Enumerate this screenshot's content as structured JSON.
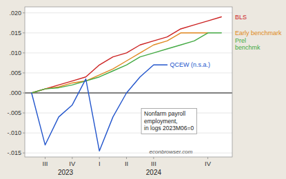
{
  "chart_data": {
    "type": "line",
    "x": [
      0,
      1,
      2,
      3,
      4,
      5,
      6,
      7,
      8,
      9,
      10,
      11,
      12,
      13,
      14
    ],
    "xlim": [
      -0.5,
      14.8
    ],
    "xticks": [
      {
        "value": 1,
        "label": "III"
      },
      {
        "value": 3,
        "label": "IV"
      },
      {
        "value": 5,
        "label": "I"
      },
      {
        "value": 7,
        "label": "II"
      },
      {
        "value": 9,
        "label": "III"
      },
      {
        "value": 13,
        "label": "IV"
      }
    ],
    "ylim": [
      -0.016,
      0.0215
    ],
    "yticks": [
      {
        "value": -0.015,
        "label": "-.015"
      },
      {
        "value": -0.01,
        "label": "-.010"
      },
      {
        "value": -0.005,
        "label": "-.005"
      },
      {
        "value": 0.0,
        "label": ".000"
      },
      {
        "value": 0.005,
        "label": ".005"
      },
      {
        "value": 0.01,
        "label": ".010"
      },
      {
        "value": 0.015,
        "label": ".015"
      },
      {
        "value": 0.02,
        "label": ".020"
      }
    ],
    "grid": true,
    "series": [
      {
        "name": "BLS",
        "color": "#cc2222",
        "values": [
          0.0,
          0.001,
          0.002,
          0.003,
          0.004,
          0.007,
          0.009,
          0.01,
          0.012,
          0.013,
          0.014,
          0.016,
          0.017,
          0.018,
          0.019
        ]
      },
      {
        "name": "Early benchmark",
        "color": "#e08820",
        "values": [
          0.0,
          0.001,
          0.0015,
          0.0025,
          0.003,
          0.0045,
          0.006,
          0.008,
          0.01,
          0.012,
          0.013,
          0.015,
          0.015,
          0.015,
          null
        ]
      },
      {
        "name": "Prel\nbenchmk",
        "color": "#44aa44",
        "values": [
          0.0,
          0.001,
          0.0013,
          0.002,
          0.003,
          0.004,
          0.0055,
          0.007,
          0.009,
          0.01,
          0.011,
          0.012,
          0.013,
          0.015,
          0.015
        ]
      },
      {
        "name": "QCEW (n.s.a.)",
        "color": "#2255cc",
        "values": [
          0.0,
          -0.013,
          -0.006,
          -0.003,
          0.0035,
          -0.0145,
          -0.006,
          0.0,
          0.004,
          0.007,
          0.007,
          null,
          null,
          null,
          null
        ]
      }
    ],
    "annotations": [
      {
        "text": "2023",
        "x": 2.5
      },
      {
        "text": "2024",
        "x": 9.0
      },
      {
        "text": "Nonfarm payroll\nemployment,\nin logs 2023M06=0"
      },
      {
        "text": "econbrowser.com"
      }
    ]
  }
}
